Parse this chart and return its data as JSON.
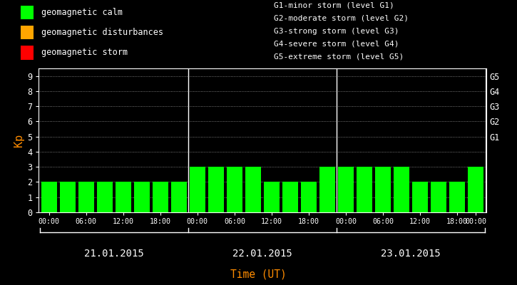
{
  "background_color": "#000000",
  "bar_color_calm": "#00ff00",
  "bar_color_disturbance": "#ffa500",
  "bar_color_storm": "#ff0000",
  "axis_color": "#ffffff",
  "ylabel_color": "#ff8c00",
  "xlabel_color": "#ff8c00",
  "font_name": "monospace",
  "ylabel": "Kp",
  "xlabel": "Time (UT)",
  "ylim": [
    0,
    9.5
  ],
  "yticks": [
    0,
    1,
    2,
    3,
    4,
    5,
    6,
    7,
    8,
    9
  ],
  "right_ytick_labels": [
    "",
    "",
    "",
    "",
    "",
    "G1",
    "G2",
    "G3",
    "G4",
    "G5"
  ],
  "right_ytick_positions": [
    0,
    1,
    2,
    3,
    4,
    5,
    6,
    7,
    8,
    9
  ],
  "days": [
    "21.01.2015",
    "22.01.2015",
    "23.01.2015"
  ],
  "kp_values": [
    [
      2,
      2,
      2,
      2,
      2,
      2,
      2,
      2
    ],
    [
      3,
      3,
      3,
      3,
      2,
      2,
      2,
      3
    ],
    [
      3,
      3,
      3,
      3,
      2,
      2,
      2,
      3
    ]
  ],
  "legend_items": [
    {
      "color": "#00ff00",
      "label": "geomagnetic calm"
    },
    {
      "color": "#ffa500",
      "label": "geomagnetic disturbances"
    },
    {
      "color": "#ff0000",
      "label": "geomagnetic storm"
    }
  ],
  "g_legend_lines": [
    "G1-minor storm (level G1)",
    "G2-moderate storm (level G2)",
    "G3-strong storm (level G3)",
    "G4-severe storm (level G4)",
    "G5-extreme storm (level G5)"
  ],
  "figsize": [
    7.25,
    4.0
  ],
  "dpi": 100
}
